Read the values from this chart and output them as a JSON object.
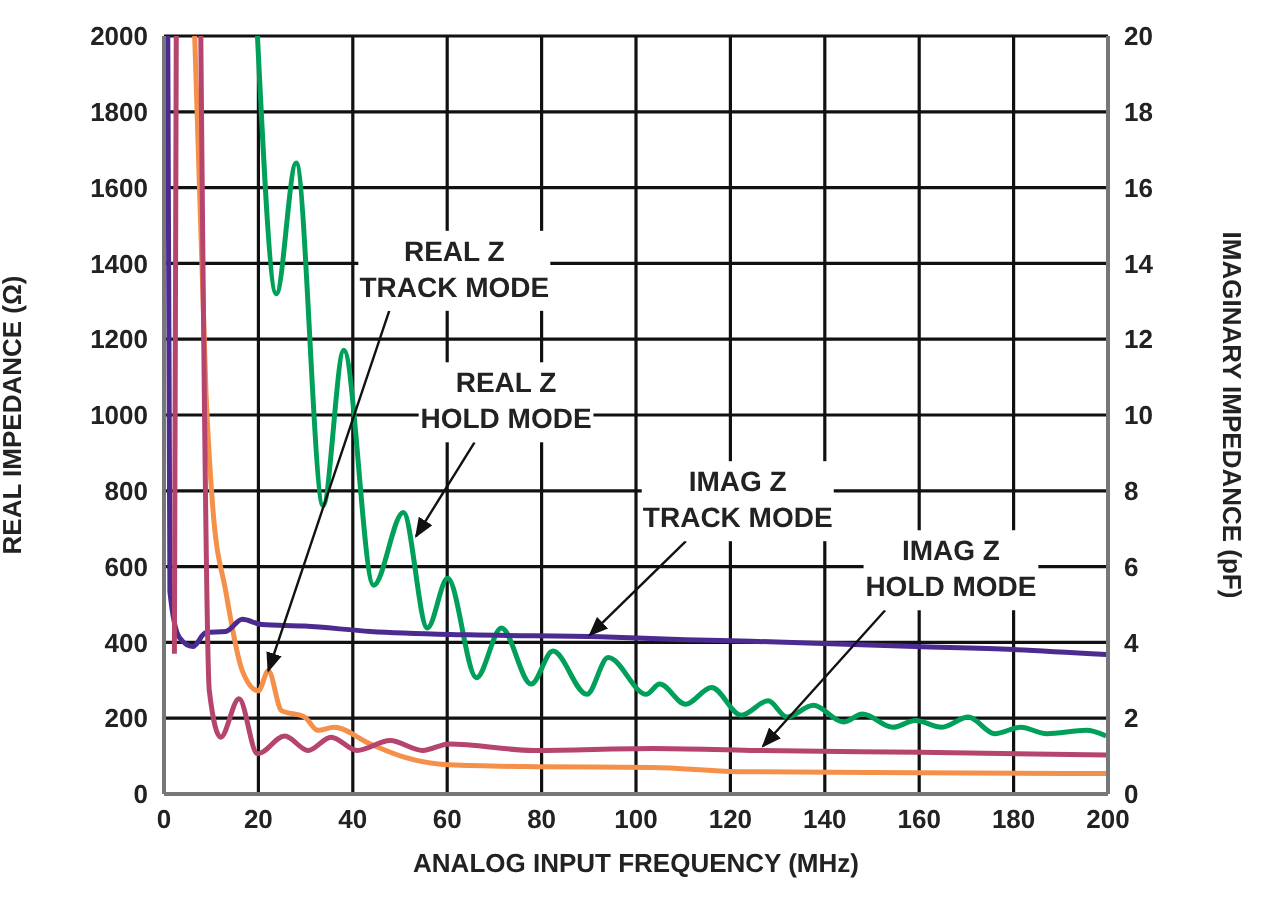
{
  "chart_data": {
    "type": "line",
    "xlabel": "ANALOG INPUT FREQUENCY (MHz)",
    "ylabel": "REAL IMPEDANCE (Ω)",
    "y2label": "IMAGINARY IMPEDANCE (pF)",
    "xlim": [
      0,
      200
    ],
    "xticks": [
      0,
      20,
      40,
      60,
      80,
      100,
      120,
      140,
      160,
      180,
      200
    ],
    "ylim": [
      0,
      2000
    ],
    "yticks": [
      0,
      200,
      400,
      600,
      800,
      1000,
      1200,
      1400,
      1600,
      1800,
      2000
    ],
    "y2lim": [
      0,
      20
    ],
    "y2ticks": [
      0,
      2,
      4,
      6,
      8,
      10,
      12,
      14,
      16,
      18,
      20
    ],
    "grid": true,
    "marker": "none",
    "line_style": "solid",
    "series": [
      {
        "color": "#f4904a",
        "x": [
          6.5,
          8.9,
          10.3,
          13.1,
          16.6,
          20,
          22.1,
          24.9,
          29.8,
          32.6,
          36,
          43.7,
          50.7,
          60.4,
          78.5,
          103.5,
          121.6,
          160,
          199.6
        ],
        "values": [
          2000,
          1058,
          761,
          534,
          325,
          272,
          325,
          220,
          203,
          168,
          176,
          132,
          98,
          77,
          72,
          70,
          59,
          56,
          54
        ]
      },
      {
        "color": "#00a05a",
        "x": [
          19.8,
          23.8,
          28,
          33.7,
          38.1,
          44.4,
          50.7,
          55.8,
          60.1,
          66.2,
          71.5,
          77.8,
          82.4,
          89.6,
          94.1,
          102.2,
          105,
          110.5,
          116,
          122.3,
          128,
          132,
          137.6,
          143.9,
          148,
          154.4,
          159.2,
          164.8,
          170.4,
          176,
          181.5,
          187,
          195.4,
          199.6
        ],
        "values": [
          2000,
          1320,
          1665,
          761,
          1171,
          551,
          743,
          438,
          569,
          307,
          438,
          290,
          377,
          263,
          360,
          263,
          290,
          237,
          281,
          208,
          246,
          203,
          234,
          190,
          211,
          176,
          194,
          176,
          203,
          159,
          176,
          159,
          168,
          153
        ]
      },
      {
        "color": "#4b2b8f",
        "axis": "y2",
        "x": [
          0.8,
          1.25,
          3.3,
          6.1,
          8.9,
          13.1,
          16.6,
          20.7,
          29.8,
          43.7,
          64.6,
          92.4,
          110.5,
          124.4,
          159.2,
          180.1,
          199.6
        ],
        "values": [
          20,
          5.34,
          4.12,
          3.89,
          4.26,
          4.29,
          4.61,
          4.47,
          4.43,
          4.29,
          4.2,
          4.15,
          4.07,
          4.03,
          3.89,
          3.81,
          3.68
        ]
      },
      {
        "color": "#b5446e",
        "axis": "y2",
        "x": [
          2.2,
          2.6,
          5,
          7.8,
          9.6,
          12,
          15.9,
          19.8,
          25.6,
          30.5,
          35.4,
          40.9,
          47.9,
          54.8,
          60.4,
          78.5,
          103.5,
          124.4,
          160,
          199.6
        ],
        "values": [
          3.7,
          20,
          null,
          20,
          2.72,
          1.5,
          2.51,
          1.06,
          1.53,
          1.15,
          1.5,
          1.15,
          1.41,
          1.15,
          1.32,
          1.15,
          1.2,
          1.15,
          1.1,
          1.03
        ]
      }
    ],
    "annotations": [
      {
        "text": "REAL Z\nTRACK MODE",
        "x": 22.1,
        "y": 325
      },
      {
        "text": "REAL Z\nHOLD MODE",
        "x": 53.4,
        "y": 680
      },
      {
        "text": "IMAG Z\nTRACK MODE",
        "x": 90.2,
        "y": 419
      },
      {
        "text": "IMAG Z\nHOLD MODE",
        "x": 126.9,
        "y": 126
      }
    ]
  }
}
